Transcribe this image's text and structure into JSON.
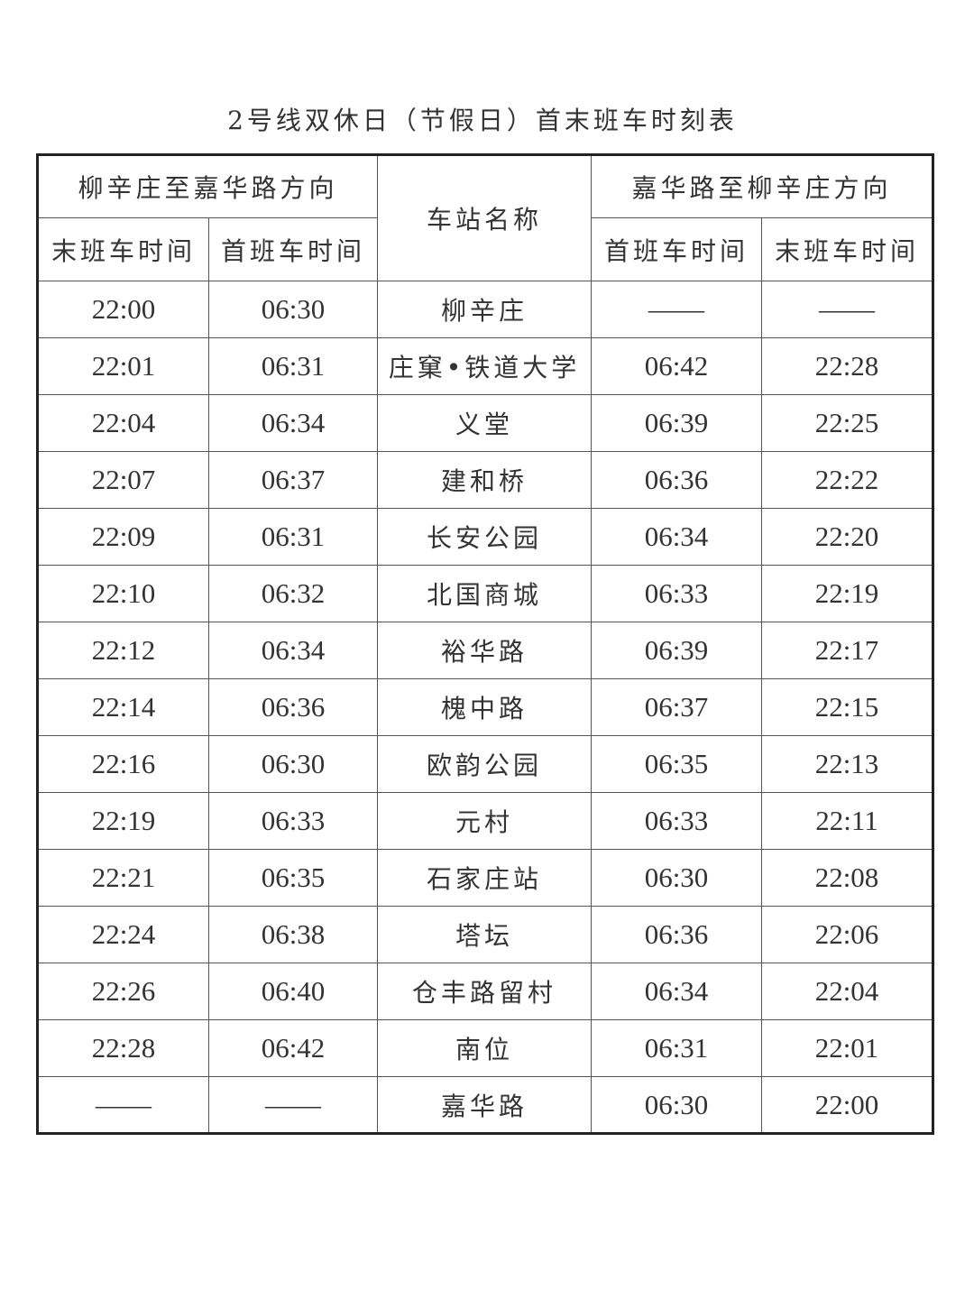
{
  "title": "2号线双休日（节假日）首末班车时刻表",
  "header": {
    "dir_a": "柳辛庄至嘉华路方向",
    "dir_b": "嘉华路至柳辛庄方向",
    "station": "车站名称",
    "last_a": "末班车时间",
    "first_a": "首班车时间",
    "first_b": "首班车时间",
    "last_b": "末班车时间"
  },
  "rows": [
    [
      "22:00",
      "06:30",
      "柳辛庄",
      "——",
      "——"
    ],
    [
      "22:01",
      "06:31",
      "庄窠•铁道大学",
      "06:42",
      "22:28"
    ],
    [
      "22:04",
      "06:34",
      "义堂",
      "06:39",
      "22:25"
    ],
    [
      "22:07",
      "06:37",
      "建和桥",
      "06:36",
      "22:22"
    ],
    [
      "22:09",
      "06:31",
      "长安公园",
      "06:34",
      "22:20"
    ],
    [
      "22:10",
      "06:32",
      "北国商城",
      "06:33",
      "22:19"
    ],
    [
      "22:12",
      "06:34",
      "裕华路",
      "06:39",
      "22:17"
    ],
    [
      "22:14",
      "06:36",
      "槐中路",
      "06:37",
      "22:15"
    ],
    [
      "22:16",
      "06:30",
      "欧韵公园",
      "06:35",
      "22:13"
    ],
    [
      "22:19",
      "06:33",
      "元村",
      "06:33",
      "22:11"
    ],
    [
      "22:21",
      "06:35",
      "石家庄站",
      "06:30",
      "22:08"
    ],
    [
      "22:24",
      "06:38",
      "塔坛",
      "06:36",
      "22:06"
    ],
    [
      "22:26",
      "06:40",
      "仓丰路留村",
      "06:34",
      "22:04"
    ],
    [
      "22:28",
      "06:42",
      "南位",
      "06:31",
      "22:01"
    ],
    [
      "——",
      "——",
      "嘉华路",
      "06:30",
      "22:00"
    ]
  ]
}
